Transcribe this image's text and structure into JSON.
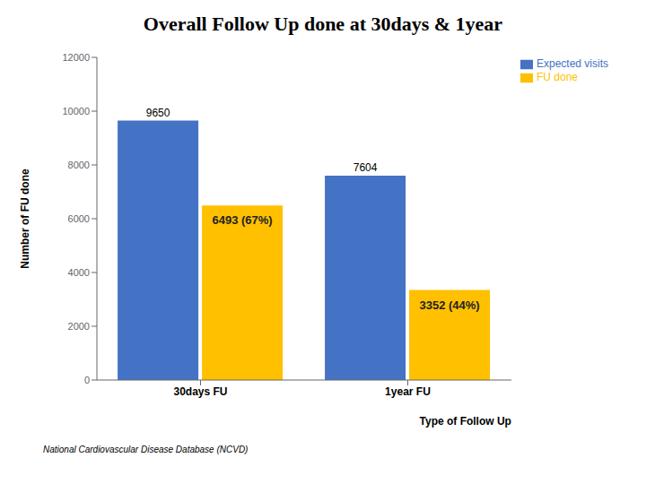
{
  "chart_data": {
    "type": "bar",
    "title": "Overall Follow Up done at 30days & 1year",
    "subtitle": "National Cardiovascular Disease Database (NCVD)",
    "x_label": "Type of Follow Up",
    "y_label": "Number of FU done",
    "categories": [
      "30days FU",
      "1year FU"
    ],
    "series": [
      {
        "name": "Expected visits",
        "color": "#4472C4",
        "values": [
          9650,
          7604
        ]
      },
      {
        "name": "FU done",
        "color": "#FFC000",
        "values": [
          6493,
          3352
        ],
        "value_labels": [
          "6493 (67%)",
          "3352 (44%)"
        ]
      }
    ],
    "ylim": [
      0,
      12000
    ],
    "yticks": [
      0,
      2000,
      4000,
      6000,
      8000,
      10000,
      12000
    ],
    "grid": false,
    "legend": "upper right",
    "data_labels": true
  }
}
